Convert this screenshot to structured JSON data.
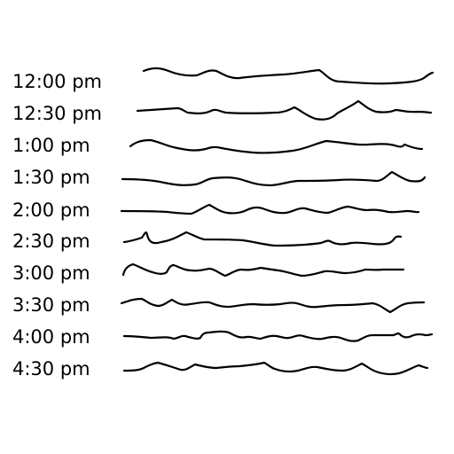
{
  "rows": [
    {
      "label": "12:00 pm"
    },
    {
      "label": "12:30 pm"
    },
    {
      "label": "1:00 pm"
    },
    {
      "label": "1:30 pm"
    },
    {
      "label": "2:00 pm"
    },
    {
      "label": "2:30 pm"
    },
    {
      "label": "3:00 pm"
    },
    {
      "label": "3:30 pm"
    },
    {
      "label": "4:00 pm"
    },
    {
      "label": "4:30 pm"
    }
  ],
  "colors": {
    "ink": "#000000",
    "background": "#ffffff"
  }
}
